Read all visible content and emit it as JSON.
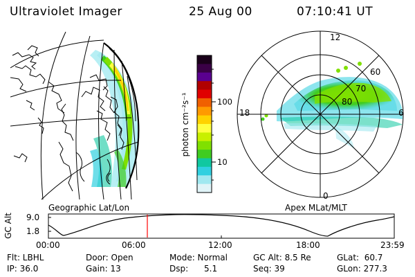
{
  "header": {
    "instrument": "Ultraviolet Imager",
    "date": "25 Aug 00",
    "time": "07:10:41  UT"
  },
  "colorbar": {
    "label": "photon cm⁻²s⁻¹",
    "ticks": [
      "100",
      "10"
    ],
    "colors": [
      "#1a001a",
      "#3a0046",
      "#5a0090",
      "#b00000",
      "#e00000",
      "#f06000",
      "#ff9a00",
      "#ffd200",
      "#ffff40",
      "#c8f000",
      "#80e000",
      "#40cc20",
      "#10c8a0",
      "#30d0e0",
      "#a0e8f0",
      "#e0f4f8"
    ]
  },
  "geo_panel": {
    "label": "Geographic Lat/Lon"
  },
  "polar_panel": {
    "label": "Apex MLat/MLT",
    "mlt_labels": {
      "top": "12",
      "left": "18",
      "right": "6",
      "bottom": "0"
    },
    "lat_labels": [
      "60",
      "70",
      "80"
    ]
  },
  "altitude_plot": {
    "ylabel": "GC Alt",
    "yticks": [
      "9.0",
      "1.8"
    ],
    "xticks": [
      "00:00",
      "06:00",
      "12:00",
      "18:00",
      "23:59"
    ],
    "marker_time": "07:10",
    "marker_color": "#ff0000"
  },
  "info": {
    "flt": "Flt: LBHL",
    "ip": "IP: 36.0",
    "door": "Door: Open",
    "gain": "Gain: 13",
    "mode": "Mode: Normal",
    "dsp": "Dsp:      5.1",
    "gcalt": "GC Alt: 8.5 Re",
    "seq": "Seq: 39",
    "glat": "GLat:  60.7",
    "glon": "GLon: 277.3"
  }
}
